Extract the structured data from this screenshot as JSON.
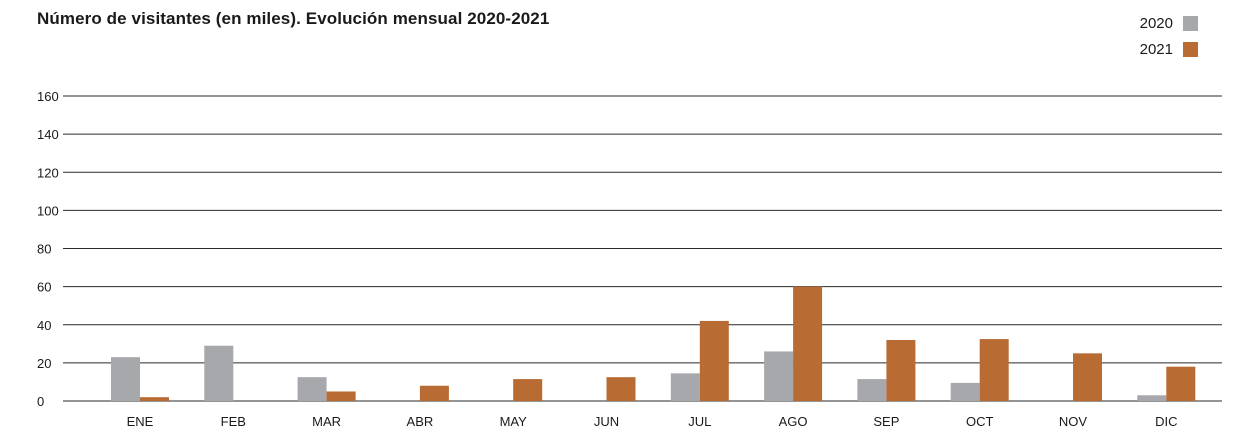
{
  "chart_data": {
    "type": "bar",
    "title": "Número de visitantes (en miles). Evolución mensual 2020-2021",
    "categories": [
      "ENE",
      "FEB",
      "MAR",
      "ABR",
      "MAY",
      "JUN",
      "JUL",
      "AGO",
      "SEP",
      "OCT",
      "NOV",
      "DIC"
    ],
    "series": [
      {
        "name": "2020",
        "color": "#a6a8ab",
        "values": [
          23,
          29,
          12.5,
          0,
          0,
          0,
          14.5,
          26,
          11.5,
          9.5,
          0,
          3
        ]
      },
      {
        "name": "2021",
        "color": "#b86b33",
        "values": [
          2,
          0,
          5,
          8,
          11.5,
          12.5,
          42,
          60,
          32,
          32.5,
          25,
          18
        ]
      }
    ],
    "ylim": [
      0,
      160
    ],
    "yticks": [
      0,
      20,
      40,
      60,
      80,
      100,
      120,
      140,
      160
    ],
    "grid": true,
    "legend_position": "top-right"
  }
}
